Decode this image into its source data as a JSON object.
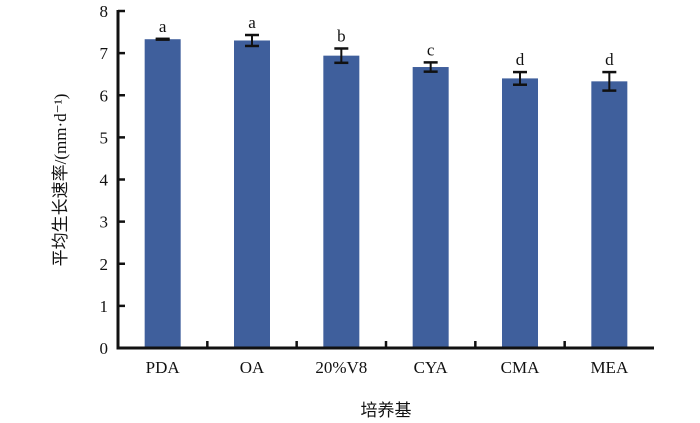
{
  "chart_data": {
    "type": "bar",
    "title": "",
    "xlabel": "培养基",
    "ylabel": "平均生长速率/(mm·d⁻¹)",
    "categories": [
      "PDA",
      "OA",
      "20%V8",
      "CYA",
      "CMA",
      "MEA"
    ],
    "values": [
      7.33,
      7.3,
      6.94,
      6.67,
      6.4,
      6.33
    ],
    "errors": [
      0.01,
      0.13,
      0.17,
      0.11,
      0.15,
      0.22
    ],
    "significance_labels": [
      "a",
      "a",
      "b",
      "c",
      "d",
      "d"
    ],
    "ylim": [
      0,
      8
    ],
    "yticks": [
      0,
      1,
      2,
      3,
      4,
      5,
      6,
      7,
      8
    ],
    "grid": false,
    "bar_color": "#3f5f9c"
  }
}
